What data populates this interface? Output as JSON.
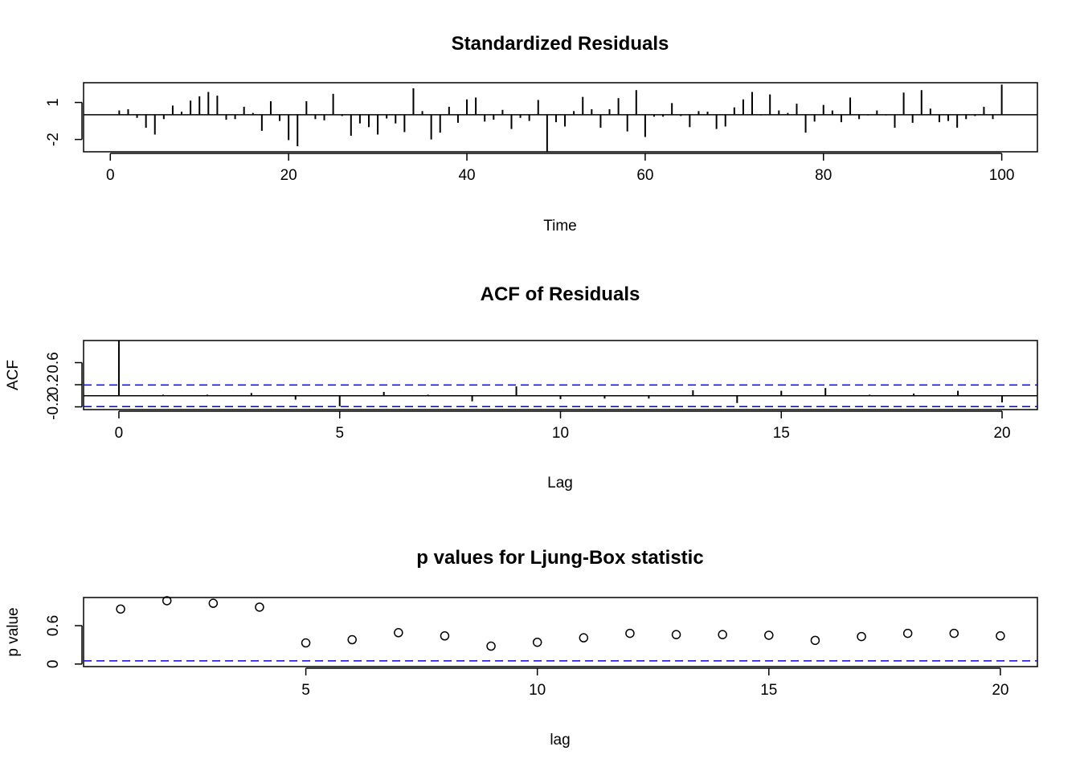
{
  "chart_data": [
    {
      "type": "bar",
      "title": "Standardized Residuals",
      "xlabel": "Time",
      "ylabel": "",
      "xlim": [
        -3,
        104
      ],
      "ylim": [
        -3.0,
        2.6
      ],
      "xticks": [
        0,
        20,
        40,
        60,
        80,
        100
      ],
      "yticks": [
        -2,
        1
      ],
      "x": [
        1,
        2,
        3,
        4,
        5,
        6,
        7,
        8,
        9,
        10,
        11,
        12,
        13,
        14,
        15,
        16,
        17,
        18,
        19,
        20,
        21,
        22,
        23,
        24,
        25,
        26,
        27,
        28,
        29,
        30,
        31,
        32,
        33,
        34,
        35,
        36,
        37,
        38,
        39,
        40,
        41,
        42,
        43,
        44,
        45,
        46,
        47,
        48,
        49,
        50,
        51,
        52,
        53,
        54,
        55,
        56,
        57,
        58,
        59,
        60,
        61,
        62,
        63,
        64,
        65,
        66,
        67,
        68,
        69,
        70,
        71,
        72,
        73,
        74,
        75,
        76,
        77,
        78,
        79,
        80,
        81,
        82,
        83,
        84,
        85,
        86,
        87,
        88,
        89,
        90,
        91,
        92,
        93,
        94,
        95,
        96,
        97,
        98,
        99,
        100
      ],
      "values": [
        0.35,
        0.45,
        -0.25,
        -1.05,
        -1.6,
        -0.35,
        0.75,
        0.25,
        1.15,
        1.5,
        1.85,
        1.55,
        -0.4,
        -0.35,
        0.65,
        0.15,
        -1.3,
        1.1,
        -0.5,
        -2.05,
        -2.55,
        1.1,
        -0.35,
        -0.45,
        1.7,
        -0.1,
        -1.7,
        -0.7,
        -1.0,
        -1.6,
        -0.3,
        -0.7,
        -1.4,
        2.15,
        0.3,
        -2.0,
        -1.45,
        0.65,
        -0.65,
        1.25,
        1.4,
        -0.55,
        -0.4,
        0.4,
        -1.15,
        -0.25,
        -0.5,
        1.2,
        -3.0,
        -0.6,
        -0.95,
        0.3,
        1.45,
        0.45,
        -1.05,
        0.45,
        1.35,
        -1.35,
        2.0,
        -1.8,
        -0.15,
        -0.15,
        0.95,
        -0.1,
        -1.0,
        0.3,
        0.25,
        -1.15,
        -0.95,
        0.6,
        1.25,
        1.85,
        -0.05,
        1.65,
        0.35,
        0.15,
        0.9,
        -1.45,
        -0.55,
        0.8,
        0.35,
        -0.6,
        1.4,
        -0.35,
        -0.05,
        0.35,
        -0.05,
        -1.05,
        1.8,
        -0.65,
        2.0,
        0.5,
        -0.6,
        -0.5,
        -1.05,
        -0.35,
        -0.1,
        0.65,
        -0.35,
        2.45
      ]
    },
    {
      "type": "bar",
      "title": "ACF of Residuals",
      "xlabel": "Lag",
      "ylabel": "ACF",
      "xlim": [
        -0.8,
        20.8
      ],
      "ylim": [
        -0.25,
        1.0
      ],
      "xticks": [
        0,
        5,
        10,
        15,
        20
      ],
      "yticks": [
        -0.2,
        0.2,
        0.6
      ],
      "x": [
        0,
        1,
        2,
        3,
        4,
        5,
        6,
        7,
        8,
        9,
        10,
        11,
        12,
        13,
        14,
        15,
        16,
        17,
        18,
        19,
        20
      ],
      "values": [
        1.0,
        0.02,
        0.02,
        0.05,
        -0.07,
        -0.19,
        0.07,
        0.02,
        -0.1,
        0.17,
        -0.06,
        -0.05,
        -0.05,
        0.1,
        -0.13,
        0.09,
        0.14,
        0.02,
        0.04,
        0.09,
        -0.12
      ],
      "bounds": [
        0.196,
        -0.196
      ]
    },
    {
      "type": "scatter",
      "title": "p values for Ljung-Box statistic",
      "xlabel": "lag",
      "ylabel": "p value",
      "xlim": [
        0.2,
        20.8
      ],
      "ylim": [
        -0.04,
        1.04
      ],
      "xticks": [
        5,
        10,
        15,
        20
      ],
      "yticks": [
        0.0,
        0.6
      ],
      "x": [
        1,
        2,
        3,
        4,
        5,
        6,
        7,
        8,
        9,
        10,
        11,
        12,
        13,
        14,
        15,
        16,
        17,
        18,
        19,
        20
      ],
      "values": [
        0.86,
        0.99,
        0.95,
        0.89,
        0.33,
        0.38,
        0.49,
        0.44,
        0.28,
        0.34,
        0.41,
        0.48,
        0.46,
        0.46,
        0.45,
        0.37,
        0.43,
        0.48,
        0.48,
        0.44
      ],
      "threshold": 0.05
    }
  ],
  "colors": {
    "axis": "#000000",
    "dashed": "#0000FF",
    "background": "#ffffff"
  }
}
